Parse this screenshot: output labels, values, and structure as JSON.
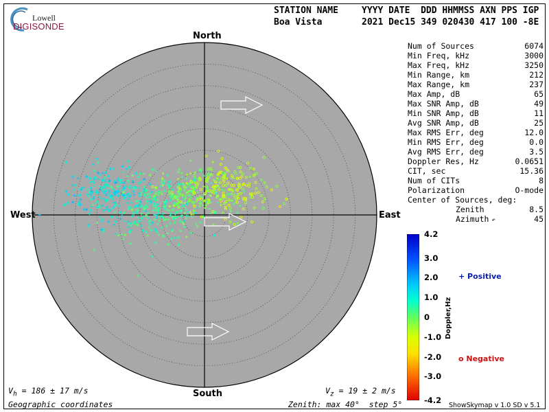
{
  "logo": {
    "line1": "Lowell",
    "line2": "DIGISONDE"
  },
  "header": {
    "row1_station": "STATION NAME",
    "row1_cols": "YYYY DATE  DDD HHMMSS AXN PPS IGP",
    "row2_station": "Boa Vista",
    "row2_cols": "2021 Dec15 349 020430 417 100 -8E"
  },
  "compass": {
    "north": "North",
    "south": "South",
    "east": "East",
    "west": "West"
  },
  "stats": [
    {
      "label": "Num of Sources",
      "value": "6074"
    },
    {
      "label": "Min Freq, kHz",
      "value": "3000"
    },
    {
      "label": "Max Freq, kHz",
      "value": "3250"
    },
    {
      "label": "Min Range, km",
      "value": "212"
    },
    {
      "label": "Max Range, km",
      "value": "237"
    },
    {
      "label": "Max Amp, dB",
      "value": "65"
    },
    {
      "label": "Max SNR Amp, dB",
      "value": "49"
    },
    {
      "label": "Min SNR Amp, dB",
      "value": "11"
    },
    {
      "label": "Avg SNR Amp, dB",
      "value": "25"
    },
    {
      "label": "Max RMS Err, deg",
      "value": "12.0"
    },
    {
      "label": "Min RMS Err, deg",
      "value": "0.0"
    },
    {
      "label": "Avg RMS Err, deg",
      "value": "3.5"
    },
    {
      "label": "Doppler Res, Hz",
      "value": "0.0651"
    },
    {
      "label": "CIT, sec",
      "value": "15.36"
    },
    {
      "label": "Num of CITs",
      "value": "8"
    },
    {
      "label": "Polarization",
      "value": "O-mode"
    },
    {
      "label": "Center of Sources, deg:",
      "value": ""
    }
  ],
  "center": {
    "zenith_label": "Zenith",
    "zenith_value": "8.5",
    "azimuth_label": "Azimuth",
    "azimuth_value": "45"
  },
  "colorbar": {
    "title": "Doppler,Hz",
    "ticks": [
      "4.2",
      "3.0",
      "2.0",
      "1.0",
      "0",
      "-1.0",
      "-2.0",
      "-3.0",
      "-4.2"
    ],
    "legend_positive": "+ Positive",
    "legend_negative": "o Negative"
  },
  "footer": {
    "vh": "V",
    "vh_sub": "h",
    "vh_rest": " = 186 ± 17 m/s",
    "vz": "V",
    "vz_sub": "z",
    "vz_rest": " = 19 ± 2 m/s",
    "coords": "Geographic coordinates",
    "zenith_info": "Zenith: max 40°  step 5°",
    "software": "ShowSkymap v 1.0   SD v 5.1"
  },
  "colors": {
    "disk": "#a8a8a8",
    "positive": "#0a1ea8",
    "negative": "#d01010"
  },
  "chart_data": {
    "type": "scatter",
    "title": "",
    "xlabel": "",
    "ylabel": "",
    "zenith_max_deg": 40,
    "zenith_step_deg": 5,
    "clusters": [
      {
        "name": "",
        "marker": "+",
        "center_x_deg": -22,
        "center_y_deg": 5,
        "spread_deg": 4,
        "count": 220,
        "doppler_hz": 1.2
      },
      {
        "name": "",
        "marker": "+",
        "center_x_deg": -12,
        "center_y_deg": 2,
        "spread_deg": 5,
        "count": 260,
        "doppler_hz": 0.5
      },
      {
        "name": "",
        "marker": "+",
        "center_x_deg": -2,
        "center_y_deg": 5,
        "spread_deg": 4,
        "count": 220,
        "doppler_hz": -0.2
      },
      {
        "name": "",
        "marker": "o",
        "center_x_deg": 6,
        "center_y_deg": 6,
        "spread_deg": 4,
        "count": 160,
        "doppler_hz": -0.8
      }
    ],
    "velocity_arrows_azimuth_deg": [
      90,
      90,
      90
    ]
  }
}
